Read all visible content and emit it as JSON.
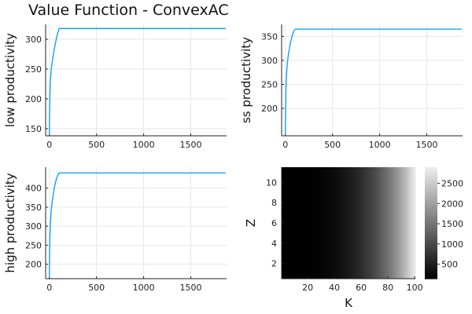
{
  "title": "Value Function - ConvexAC",
  "colors": {
    "line": "#009af9",
    "grid": "#e6e6e6",
    "axis": "#222222"
  },
  "chart_data": [
    {
      "type": "line",
      "ylabel": "low productivity",
      "xlabel": "",
      "xlim": [
        -40,
        1880
      ],
      "ylim": [
        138,
        325
      ],
      "xticks": [
        0,
        500,
        1000,
        1500
      ],
      "yticks": [
        150,
        200,
        250,
        300
      ],
      "grid": true,
      "series": [
        {
          "x": [
            0,
            2,
            5,
            10,
            15,
            20,
            30,
            40,
            50,
            60,
            70,
            80,
            90,
            100,
            105,
            1870
          ],
          "y": [
            140,
            175,
            205,
            228,
            240,
            250,
            262,
            272,
            282,
            290,
            298,
            305,
            311,
            316,
            318,
            318
          ]
        }
      ]
    },
    {
      "type": "line",
      "ylabel": "ss productivity",
      "xlabel": "",
      "xlim": [
        -40,
        1880
      ],
      "ylim": [
        143,
        375
      ],
      "xticks": [
        0,
        500,
        1000,
        1500
      ],
      "yticks": [
        200,
        250,
        300,
        350
      ],
      "grid": true,
      "series": [
        {
          "x": [
            0,
            2,
            5,
            10,
            15,
            20,
            30,
            40,
            50,
            60,
            70,
            80,
            90,
            100,
            105,
            1870
          ],
          "y": [
            145,
            195,
            232,
            262,
            280,
            293,
            310,
            322,
            333,
            342,
            350,
            356,
            361,
            364,
            365,
            365
          ]
        }
      ]
    },
    {
      "type": "line",
      "ylabel": "high productivity",
      "xlabel": "",
      "xlim": [
        -40,
        1880
      ],
      "ylim": [
        162,
        455
      ],
      "xticks": [
        0,
        500,
        1000,
        1500
      ],
      "yticks": [
        200,
        250,
        300,
        350,
        400
      ],
      "grid": true,
      "series": [
        {
          "x": [
            0,
            2,
            5,
            10,
            15,
            20,
            30,
            40,
            50,
            60,
            70,
            80,
            90,
            100,
            105,
            1870
          ],
          "y": [
            165,
            225,
            270,
            305,
            325,
            345,
            365,
            382,
            398,
            410,
            420,
            428,
            434,
            438,
            440,
            440
          ]
        }
      ]
    },
    {
      "type": "heatmap",
      "xlabel": "K",
      "ylabel": "Z",
      "xlim": [
        0.5,
        100.5
      ],
      "ylim": [
        0.5,
        11.5
      ],
      "xticks": [
        20,
        40,
        60,
        80,
        100
      ],
      "yticks": [
        2,
        4,
        6,
        8,
        10
      ],
      "colorbar": {
        "min": 140,
        "max": 2900,
        "ticks": [
          500,
          1000,
          1500,
          2000,
          2500
        ],
        "colormap": "grays"
      },
      "description_values": {
        "value_min": 140,
        "value_max": 2900,
        "increases_with": "K"
      }
    }
  ]
}
